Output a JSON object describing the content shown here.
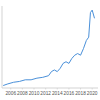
{
  "chart_data": {
    "type": "line",
    "color": "#4a90d9",
    "x": [
      2004.7,
      2005.5,
      2006.5,
      2007.5,
      2008.5,
      2009.5,
      2010.5,
      2011.5,
      2012.5,
      2013.0,
      2013.5,
      2014.0,
      2014.5,
      2015.0,
      2015.5,
      2016.0,
      2016.5,
      2017.0,
      2017.5,
      2018.0,
      2018.5,
      2019.0,
      2019.4,
      2019.7,
      2020.0,
      2020.4
    ],
    "values": [
      3,
      5,
      7,
      8,
      10,
      10,
      12,
      13,
      15,
      20,
      22,
      20,
      24,
      30,
      32,
      30,
      36,
      40,
      42,
      40,
      48,
      58,
      62,
      92,
      95,
      85
    ],
    "xlim": [
      2004.5,
      2021
    ],
    "xticks": [
      2006,
      2008,
      2010,
      2012,
      2014,
      2016,
      2018,
      2020
    ],
    "ylim": [
      0,
      100
    ],
    "grid": false,
    "tick_labels": "x"
  }
}
